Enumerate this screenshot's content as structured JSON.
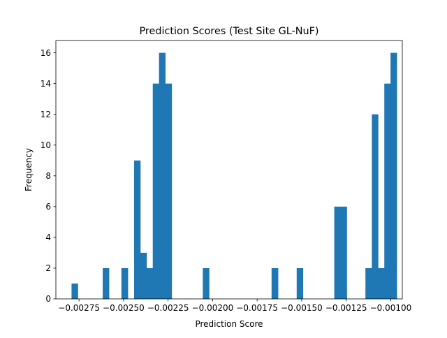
{
  "chart_data": {
    "type": "bar",
    "title": "Prediction Scores (Test Site GL-NuF)",
    "xlabel": "Prediction Score",
    "ylabel": "Frequency",
    "xlim": [
      -0.00288,
      -0.000935
    ],
    "ylim": [
      0,
      16.8
    ],
    "grid": false,
    "bar_color": "#1f77b4",
    "bin_width": 3.52e-05,
    "bins": [
      {
        "x0": -0.002792,
        "x1": -0.002757,
        "count": 1
      },
      {
        "x0": -0.002617,
        "x1": -0.002582,
        "count": 2
      },
      {
        "x0": -0.002512,
        "x1": -0.002476,
        "count": 2
      },
      {
        "x0": -0.002441,
        "x1": -0.002406,
        "count": 9
      },
      {
        "x0": -0.002406,
        "x1": -0.002371,
        "count": 3
      },
      {
        "x0": -0.002371,
        "x1": -0.002336,
        "count": 2
      },
      {
        "x0": -0.002336,
        "x1": -0.002301,
        "count": 14
      },
      {
        "x0": -0.002301,
        "x1": -0.002266,
        "count": 16
      },
      {
        "x0": -0.002266,
        "x1": -0.00223,
        "count": 14
      },
      {
        "x0": -0.002055,
        "x1": -0.00202,
        "count": 2
      },
      {
        "x0": -0.001669,
        "x1": -0.001633,
        "count": 2
      },
      {
        "x0": -0.001528,
        "x1": -0.001493,
        "count": 2
      },
      {
        "x0": -0.001317,
        "x1": -0.001282,
        "count": 6
      },
      {
        "x0": -0.001282,
        "x1": -0.001247,
        "count": 6
      },
      {
        "x0": -0.001142,
        "x1": -0.001106,
        "count": 2
      },
      {
        "x0": -0.001106,
        "x1": -0.001071,
        "count": 12
      },
      {
        "x0": -0.001071,
        "x1": -0.001036,
        "count": 2
      },
      {
        "x0": -0.001036,
        "x1": -0.001001,
        "count": 14
      },
      {
        "x0": -0.001001,
        "x1": -0.000966,
        "count": 16
      }
    ],
    "x_ticks": [
      {
        "value": -0.00275,
        "label": "−0.00275"
      },
      {
        "value": -0.0025,
        "label": "−0.00250"
      },
      {
        "value": -0.00225,
        "label": "−0.00225"
      },
      {
        "value": -0.002,
        "label": "−0.00200"
      },
      {
        "value": -0.00175,
        "label": "−0.00175"
      },
      {
        "value": -0.0015,
        "label": "−0.00150"
      },
      {
        "value": -0.00125,
        "label": "−0.00125"
      },
      {
        "value": -0.001,
        "label": "−0.00100"
      }
    ],
    "y_ticks": [
      {
        "value": 0,
        "label": "0"
      },
      {
        "value": 2,
        "label": "2"
      },
      {
        "value": 4,
        "label": "4"
      },
      {
        "value": 6,
        "label": "6"
      },
      {
        "value": 8,
        "label": "8"
      },
      {
        "value": 10,
        "label": "10"
      },
      {
        "value": 12,
        "label": "12"
      },
      {
        "value": 14,
        "label": "14"
      },
      {
        "value": 16,
        "label": "16"
      }
    ]
  }
}
